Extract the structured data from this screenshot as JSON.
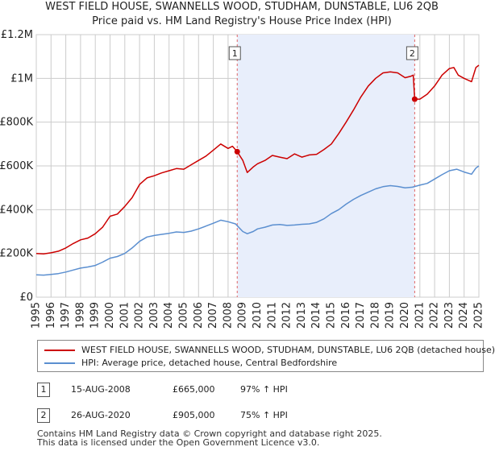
{
  "header": {
    "title_line1": "WEST FIELD HOUSE, SWANNELLS WOOD, STUDHAM, DUNSTABLE, LU6 2QB",
    "title_line2": "Price paid vs. HM Land Registry's House Price Index (HPI)"
  },
  "chart_data": {
    "type": "line",
    "title": "WEST FIELD HOUSE, SWANNELLS WOOD, STUDHAM, DUNSTABLE, LU6 2QB",
    "subtitle": "Price paid vs. HM Land Registry's House Price Index (HPI)",
    "xlabel": "",
    "ylabel": "",
    "xlim": [
      1995,
      2025
    ],
    "ylim": [
      0,
      1200000
    ],
    "grid": true,
    "y_ticks": [
      0,
      200000,
      400000,
      600000,
      800000,
      1000000,
      1200000
    ],
    "y_tick_labels": [
      "£0",
      "£200K",
      "£400K",
      "£600K",
      "£800K",
      "£1M",
      "£1.2M"
    ],
    "x_ticks": [
      1995,
      1996,
      1997,
      1998,
      1999,
      2000,
      2001,
      2002,
      2003,
      2004,
      2005,
      2006,
      2007,
      2008,
      2009,
      2010,
      2011,
      2012,
      2013,
      2014,
      2015,
      2016,
      2017,
      2018,
      2019,
      2020,
      2021,
      2022,
      2023,
      2024,
      2025
    ],
    "shaded_region": {
      "from": 2008.62,
      "to": 2020.65,
      "color": "#e8eefb"
    },
    "event_markers": [
      {
        "label": "1",
        "x": 2008.62,
        "y": 665000
      },
      {
        "label": "2",
        "x": 2020.65,
        "y": 905000
      }
    ],
    "series": [
      {
        "name": "WEST FIELD HOUSE, SWANNELLS WOOD, STUDHAM, DUNSTABLE, LU6 2QB (detached house)",
        "color": "#cc0000",
        "x": [
          1995.0,
          1995.5,
          1996.0,
          1996.5,
          1997.0,
          1997.5,
          1998.0,
          1998.5,
          1999.0,
          1999.5,
          2000.0,
          2000.5,
          2001.0,
          2001.5,
          2002.0,
          2002.5,
          2003.0,
          2003.5,
          2004.0,
          2004.5,
          2005.0,
          2005.5,
          2006.0,
          2006.5,
          2007.0,
          2007.5,
          2008.0,
          2008.3,
          2008.62,
          2009.0,
          2009.3,
          2009.7,
          2010.0,
          2010.5,
          2011.0,
          2011.5,
          2012.0,
          2012.5,
          2013.0,
          2013.5,
          2014.0,
          2014.5,
          2015.0,
          2015.5,
          2016.0,
          2016.5,
          2017.0,
          2017.5,
          2018.0,
          2018.5,
          2019.0,
          2019.5,
          2020.0,
          2020.4,
          2020.55,
          2020.65,
          2021.0,
          2021.5,
          2022.0,
          2022.5,
          2023.0,
          2023.3,
          2023.6,
          2024.0,
          2024.5,
          2024.8,
          2025.0
        ],
        "values": [
          200000,
          198000,
          203000,
          210000,
          225000,
          245000,
          262000,
          270000,
          290000,
          320000,
          370000,
          380000,
          415000,
          455000,
          515000,
          545000,
          555000,
          568000,
          578000,
          588000,
          585000,
          605000,
          625000,
          645000,
          672000,
          700000,
          680000,
          690000,
          665000,
          625000,
          570000,
          595000,
          610000,
          625000,
          648000,
          640000,
          633000,
          655000,
          640000,
          650000,
          653000,
          675000,
          700000,
          748000,
          800000,
          855000,
          915000,
          965000,
          1000000,
          1025000,
          1030000,
          1025000,
          1003000,
          1010000,
          1015000,
          905000,
          905000,
          928000,
          965000,
          1015000,
          1045000,
          1050000,
          1015000,
          1000000,
          985000,
          1050000,
          1060000
        ]
      },
      {
        "name": "HPI: Average price, detached house, Central Bedfordshire",
        "color": "#5b8fd0",
        "x": [
          1995.0,
          1995.5,
          1996.0,
          1996.5,
          1997.0,
          1997.5,
          1998.0,
          1998.5,
          1999.0,
          1999.5,
          2000.0,
          2000.5,
          2001.0,
          2001.5,
          2002.0,
          2002.5,
          2003.0,
          2003.5,
          2004.0,
          2004.5,
          2005.0,
          2005.5,
          2006.0,
          2006.5,
          2007.0,
          2007.5,
          2008.0,
          2008.5,
          2009.0,
          2009.3,
          2009.7,
          2010.0,
          2010.5,
          2011.0,
          2011.5,
          2012.0,
          2012.5,
          2013.0,
          2013.5,
          2014.0,
          2014.5,
          2015.0,
          2015.5,
          2016.0,
          2016.5,
          2017.0,
          2017.5,
          2018.0,
          2018.5,
          2019.0,
          2019.5,
          2020.0,
          2020.5,
          2021.0,
          2021.5,
          2022.0,
          2022.5,
          2023.0,
          2023.5,
          2024.0,
          2024.5,
          2024.8,
          2025.0
        ],
        "values": [
          102000,
          101000,
          104000,
          108000,
          115000,
          124000,
          133000,
          138000,
          145000,
          160000,
          178000,
          186000,
          200000,
          225000,
          255000,
          275000,
          282000,
          287000,
          292000,
          298000,
          296000,
          302000,
          312000,
          325000,
          338000,
          352000,
          345000,
          335000,
          300000,
          290000,
          300000,
          312000,
          320000,
          330000,
          332000,
          328000,
          330000,
          333000,
          335000,
          342000,
          358000,
          382000,
          400000,
          425000,
          447000,
          465000,
          480000,
          495000,
          505000,
          510000,
          506000,
          500000,
          503000,
          512000,
          520000,
          540000,
          560000,
          578000,
          585000,
          572000,
          562000,
          590000,
          600000
        ]
      }
    ]
  },
  "legend": {
    "items": [
      {
        "label": "WEST FIELD HOUSE, SWANNELLS WOOD, STUDHAM, DUNSTABLE, LU6 2QB (detached house)",
        "color": "#cc0000"
      },
      {
        "label": "HPI: Average price, detached house, Central Bedfordshire",
        "color": "#5b8fd0"
      }
    ]
  },
  "transactions": [
    {
      "id": "1",
      "date": "15-AUG-2008",
      "price": "£665,000",
      "hpi": "97% ↑ HPI"
    },
    {
      "id": "2",
      "date": "26-AUG-2020",
      "price": "£905,000",
      "hpi": "75% ↑ HPI"
    }
  ],
  "footer": {
    "line1": "Contains HM Land Registry data © Crown copyright and database right 2025.",
    "line2": "This data is licensed under the Open Government Licence v3.0."
  }
}
